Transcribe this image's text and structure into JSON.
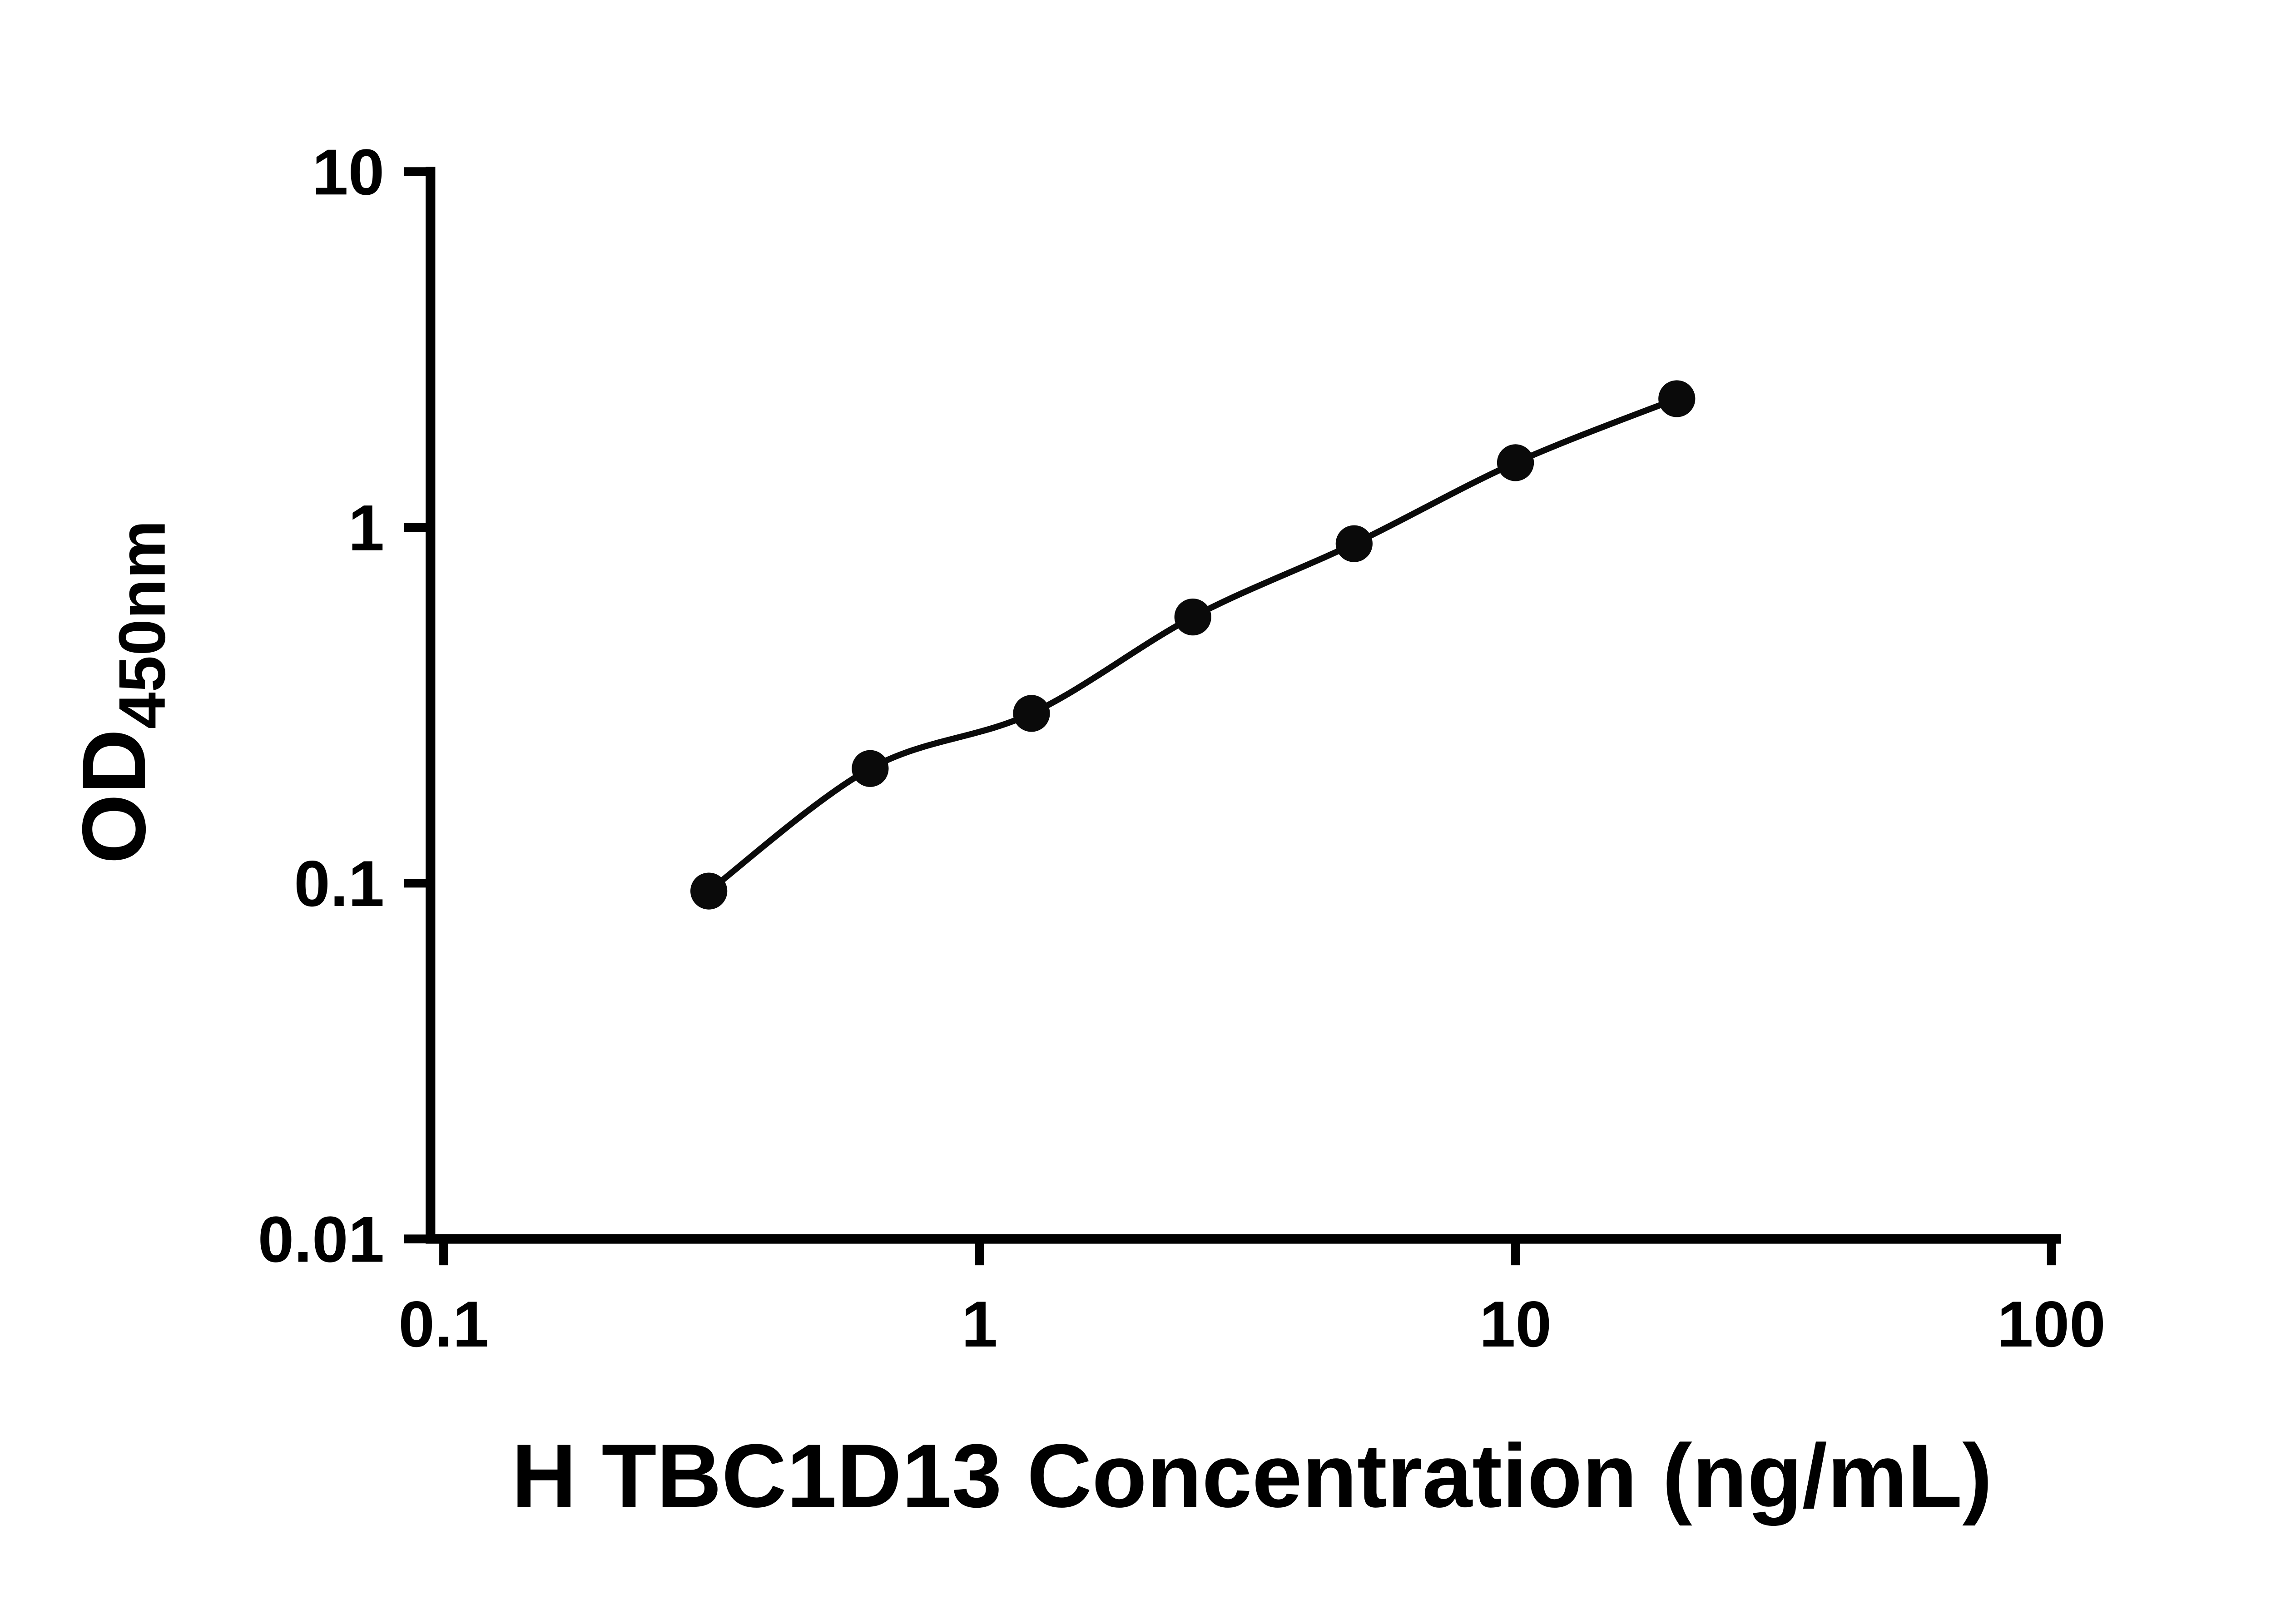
{
  "figure": {
    "background": "#ffffff"
  },
  "chart_data": {
    "type": "scatter",
    "line": true,
    "title": "",
    "xlabel": "H TBC1D13 Concentration (ng/mL)",
    "ylabel": "OD450nm",
    "ylabel_main": "OD",
    "ylabel_sub": "450nm",
    "x_scale": "log10",
    "y_scale": "log10",
    "xlim": [
      0.1,
      100
    ],
    "ylim": [
      0.01,
      10
    ],
    "x_ticks": [
      0.1,
      1,
      10,
      100
    ],
    "x_tick_labels": [
      "0.1",
      "1",
      "10",
      "100"
    ],
    "y_ticks": [
      0.01,
      0.1,
      1,
      10
    ],
    "y_tick_labels": [
      "0.01",
      "0.1",
      "1",
      "10"
    ],
    "x": [
      0.3125,
      0.625,
      1.25,
      2.5,
      5,
      10,
      20
    ],
    "y": [
      0.095,
      0.21,
      0.3,
      0.56,
      0.9,
      1.52,
      2.3
    ],
    "marker": "circle",
    "marker_radius": 42,
    "marker_color": "#0a0a0a",
    "line_color": "#0a0a0a",
    "axis_color": "#000000",
    "grid": false,
    "legend": false
  }
}
